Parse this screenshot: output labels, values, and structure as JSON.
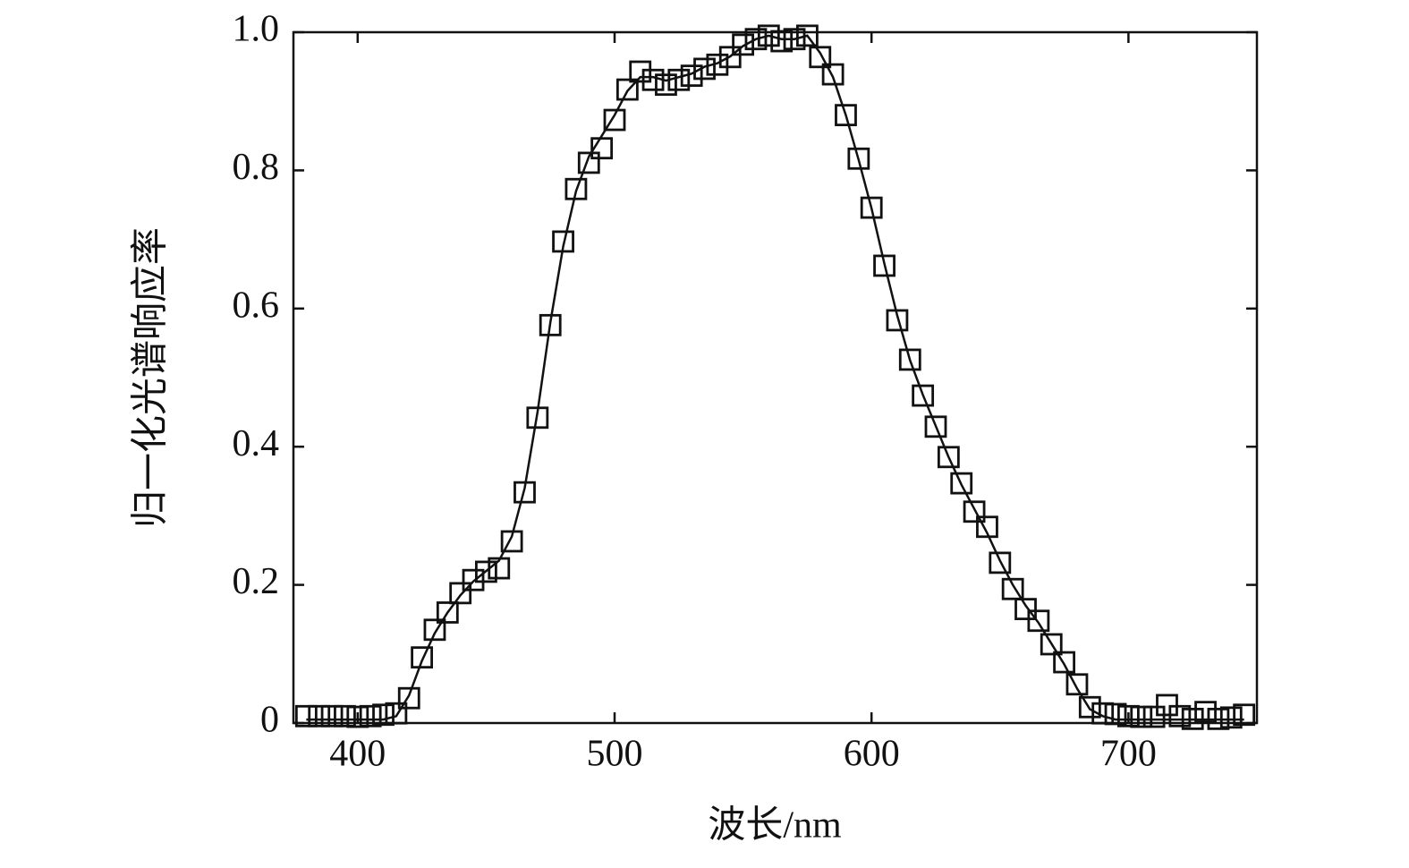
{
  "chart_data": {
    "type": "scatter",
    "x_label": "波长/nm",
    "y_label": "归一化光谱响应率",
    "x": [
      380,
      385,
      390,
      395,
      400,
      405,
      410,
      415,
      420,
      425,
      430,
      435,
      440,
      445,
      450,
      455,
      460,
      465,
      470,
      475,
      480,
      485,
      490,
      495,
      500,
      505,
      510,
      515,
      520,
      525,
      530,
      535,
      540,
      545,
      550,
      555,
      560,
      565,
      570,
      575,
      580,
      585,
      590,
      595,
      600,
      605,
      610,
      615,
      620,
      625,
      630,
      635,
      640,
      645,
      650,
      655,
      660,
      665,
      670,
      675,
      680,
      685,
      690,
      695,
      700,
      705,
      710,
      715,
      720,
      725,
      730,
      735,
      740,
      745
    ],
    "series": [
      {
        "mode": "markers",
        "marker": "square",
        "color": "#111111",
        "values": [
          0.01,
          0.01,
          0.01,
          0.01,
          0.009,
          0.01,
          0.012,
          0.014,
          0.036,
          0.095,
          0.135,
          0.16,
          0.188,
          0.207,
          0.219,
          0.224,
          0.263,
          0.334,
          0.442,
          0.576,
          0.697,
          0.773,
          0.811,
          0.832,
          0.873,
          0.917,
          0.943,
          0.931,
          0.924,
          0.931,
          0.937,
          0.947,
          0.953,
          0.964,
          0.982,
          0.99,
          0.995,
          0.987,
          0.99,
          0.995,
          0.964,
          0.939,
          0.88,
          0.817,
          0.746,
          0.662,
          0.583,
          0.526,
          0.474,
          0.429,
          0.385,
          0.347,
          0.306,
          0.284,
          0.232,
          0.194,
          0.165,
          0.148,
          0.114,
          0.088,
          0.056,
          0.023,
          0.014,
          0.013,
          0.01,
          0.009,
          0.009,
          0.026,
          0.01,
          0.006,
          0.016,
          0.006,
          0.008,
          0.012
        ]
      },
      {
        "mode": "line",
        "color": "#111111",
        "values": [
          0.005,
          0.005,
          0.005,
          0.005,
          0.005,
          0.005,
          0.005,
          0.01,
          0.04,
          0.09,
          0.13,
          0.16,
          0.185,
          0.205,
          0.22,
          0.235,
          0.27,
          0.34,
          0.45,
          0.58,
          0.69,
          0.77,
          0.82,
          0.85,
          0.88,
          0.915,
          0.935,
          0.935,
          0.93,
          0.935,
          0.94,
          0.95,
          0.955,
          0.965,
          0.98,
          0.99,
          0.995,
          0.99,
          0.99,
          0.995,
          0.97,
          0.935,
          0.88,
          0.815,
          0.745,
          0.665,
          0.59,
          0.525,
          0.475,
          0.43,
          0.385,
          0.345,
          0.31,
          0.275,
          0.235,
          0.2,
          0.17,
          0.145,
          0.115,
          0.085,
          0.05,
          0.02,
          0.01,
          0.005,
          0.005,
          0.005,
          0.005,
          0.005,
          0.005,
          0.005,
          0.005,
          0.005,
          0.005,
          0.005
        ]
      }
    ],
    "xlim": [
      375,
      750
    ],
    "ylim": [
      0,
      1
    ],
    "xticks": [
      400,
      500,
      600,
      700
    ],
    "yticks": [
      0,
      0.2,
      0.4,
      0.6,
      0.8,
      {
        "value": 1,
        "label": "1.0"
      }
    ]
  }
}
